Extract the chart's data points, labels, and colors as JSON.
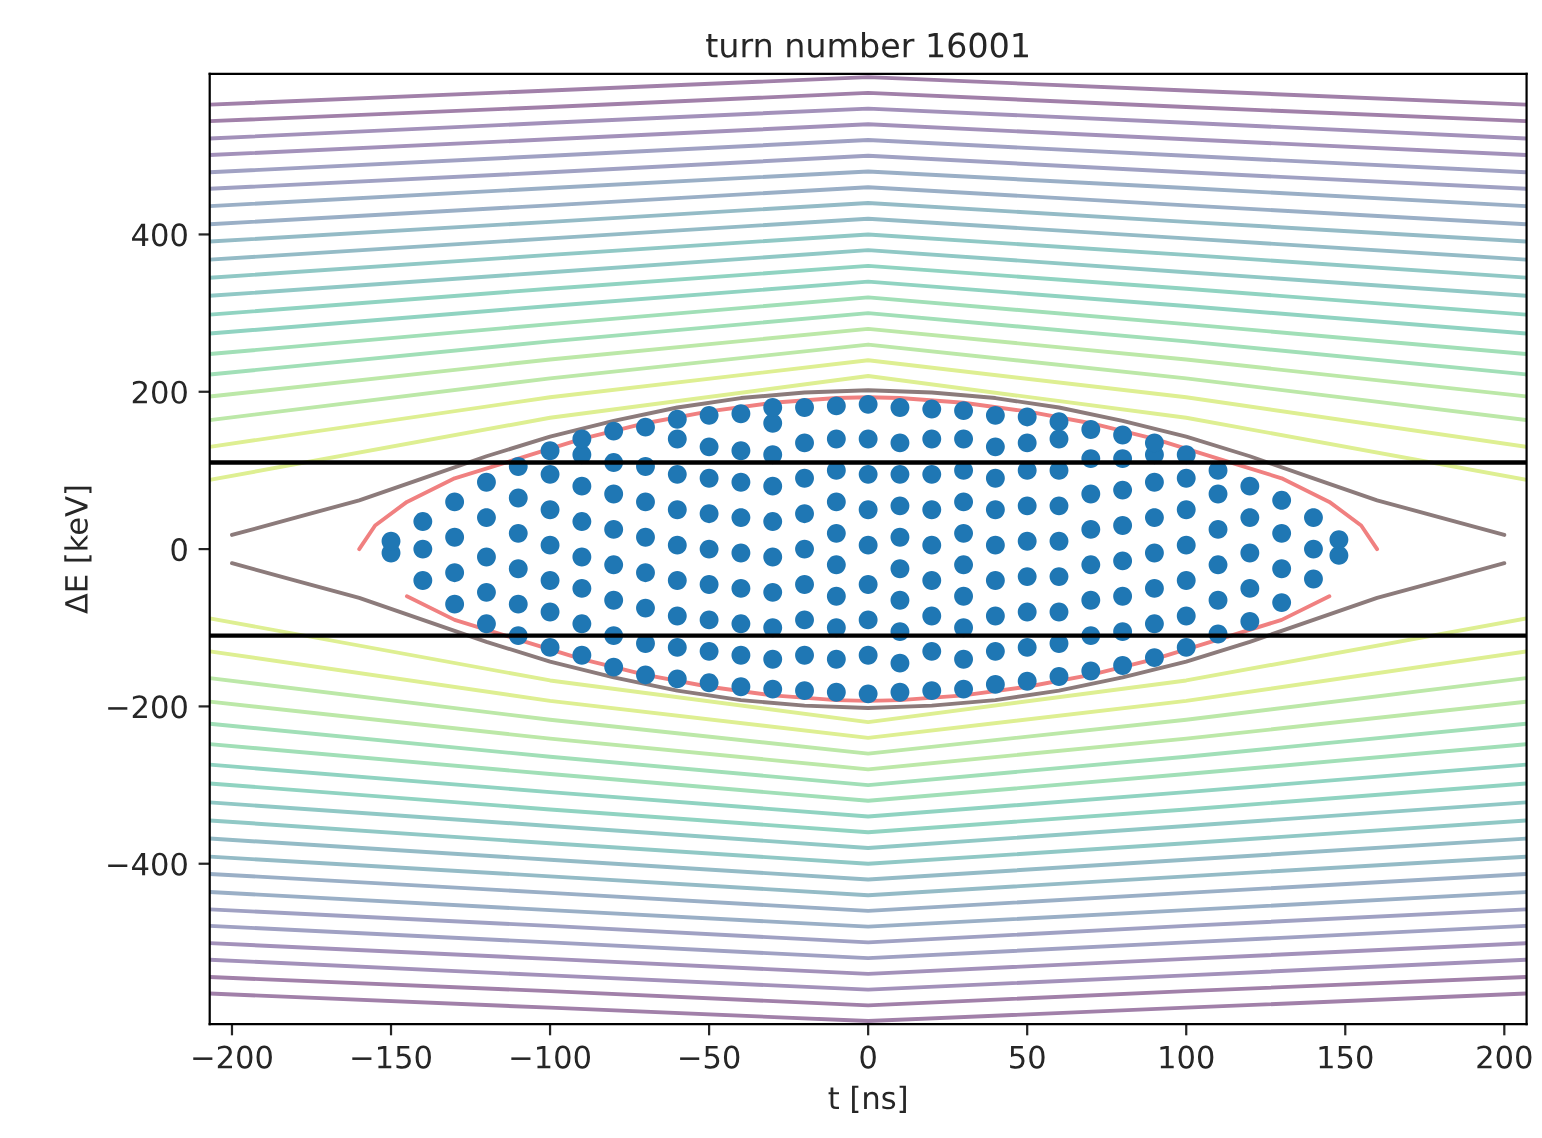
{
  "chart_data": {
    "type": "scatter",
    "title": "turn number 16001",
    "xlabel": "t [ns]",
    "ylabel": "ΔE [keV]",
    "xlim": [
      -207,
      207
    ],
    "ylim": [
      -604,
      604
    ],
    "xticks": [
      {
        "value": -200,
        "label": "−200"
      },
      {
        "value": -150,
        "label": "−150"
      },
      {
        "value": -100,
        "label": "−100"
      },
      {
        "value": -50,
        "label": "−50"
      },
      0,
      50,
      100,
      150,
      200
    ],
    "yticks": [
      {
        "value": -400,
        "label": "−400"
      },
      {
        "value": -200,
        "label": "−200"
      },
      0,
      200,
      400
    ],
    "x": [
      -207,
      -100,
      0,
      100,
      207
    ],
    "ref_lines": [
      {
        "axis": "y",
        "value": 110,
        "color": "#000000"
      },
      {
        "axis": "y",
        "value": -110,
        "color": "#000000"
      }
    ],
    "series": [
      {
        "type": "line",
        "color": "#deef92",
        "values": [
          88,
          167,
          220,
          167,
          88
        ]
      },
      {
        "type": "line",
        "color": "#deef92",
        "values": [
          130,
          193,
          240,
          193,
          130
        ]
      },
      {
        "type": "line",
        "color": "#bce8a8",
        "values": [
          164,
          217,
          260,
          217,
          164
        ]
      },
      {
        "type": "line",
        "color": "#bce8a8",
        "values": [
          194,
          241,
          280,
          241,
          194
        ]
      },
      {
        "type": "line",
        "color": "#a1dfb7",
        "values": [
          222,
          264,
          300,
          264,
          222
        ]
      },
      {
        "type": "line",
        "color": "#a1dfb7",
        "values": [
          248,
          286,
          320,
          286,
          248
        ]
      },
      {
        "type": "line",
        "color": "#90d3c1",
        "values": [
          274,
          309,
          340,
          309,
          274
        ]
      },
      {
        "type": "line",
        "color": "#90d3c1",
        "values": [
          298,
          331,
          360,
          331,
          298
        ]
      },
      {
        "type": "line",
        "color": "#90c8c5",
        "values": [
          322,
          352,
          380,
          352,
          322
        ]
      },
      {
        "type": "line",
        "color": "#90c8c5",
        "values": [
          345,
          374,
          400,
          374,
          345
        ]
      },
      {
        "type": "line",
        "color": "#94bbc6",
        "values": [
          368,
          395,
          420,
          395,
          368
        ]
      },
      {
        "type": "line",
        "color": "#94bbc6",
        "values": [
          391,
          416,
          440,
          416,
          391
        ]
      },
      {
        "type": "line",
        "color": "#9aafc6",
        "values": [
          413,
          437,
          460,
          437,
          413
        ]
      },
      {
        "type": "line",
        "color": "#9aafc6",
        "values": [
          436,
          459,
          480,
          459,
          436
        ]
      },
      {
        "type": "line",
        "color": "#a0a1c3",
        "values": [
          458,
          479,
          500,
          479,
          458
        ]
      },
      {
        "type": "line",
        "color": "#a0a1c3",
        "values": [
          479,
          500,
          520,
          500,
          479
        ]
      },
      {
        "type": "line",
        "color": "#a391ba",
        "values": [
          501,
          521,
          540,
          521,
          501
        ]
      },
      {
        "type": "line",
        "color": "#a391ba",
        "values": [
          522,
          542,
          560,
          542,
          522
        ]
      },
      {
        "type": "line",
        "color": "#a180a9",
        "values": [
          544,
          562,
          580,
          562,
          544
        ]
      },
      {
        "type": "line",
        "color": "#a180a9",
        "values": [
          565,
          583,
          600,
          583,
          565
        ]
      },
      {
        "type": "line",
        "color": "#deef92",
        "values": [
          -88,
          -167,
          -220,
          -167,
          -88
        ]
      },
      {
        "type": "line",
        "color": "#deef92",
        "values": [
          -130,
          -193,
          -240,
          -193,
          -130
        ]
      },
      {
        "type": "line",
        "color": "#bce8a8",
        "values": [
          -164,
          -217,
          -260,
          -217,
          -164
        ]
      },
      {
        "type": "line",
        "color": "#bce8a8",
        "values": [
          -194,
          -241,
          -280,
          -241,
          -194
        ]
      },
      {
        "type": "line",
        "color": "#a1dfb7",
        "values": [
          -222,
          -264,
          -300,
          -264,
          -222
        ]
      },
      {
        "type": "line",
        "color": "#a1dfb7",
        "values": [
          -248,
          -286,
          -320,
          -286,
          -248
        ]
      },
      {
        "type": "line",
        "color": "#90d3c1",
        "values": [
          -274,
          -309,
          -340,
          -309,
          -274
        ]
      },
      {
        "type": "line",
        "color": "#90d3c1",
        "values": [
          -298,
          -331,
          -360,
          -331,
          -298
        ]
      },
      {
        "type": "line",
        "color": "#90c8c5",
        "values": [
          -322,
          -352,
          -380,
          -352,
          -322
        ]
      },
      {
        "type": "line",
        "color": "#90c8c5",
        "values": [
          -345,
          -374,
          -400,
          -374,
          -345
        ]
      },
      {
        "type": "line",
        "color": "#94bbc6",
        "values": [
          -368,
          -395,
          -420,
          -395,
          -368
        ]
      },
      {
        "type": "line",
        "color": "#94bbc6",
        "values": [
          -391,
          -416,
          -440,
          -416,
          -391
        ]
      },
      {
        "type": "line",
        "color": "#9aafc6",
        "values": [
          -413,
          -437,
          -460,
          -437,
          -413
        ]
      },
      {
        "type": "line",
        "color": "#9aafc6",
        "values": [
          -436,
          -459,
          -480,
          -459,
          -436
        ]
      },
      {
        "type": "line",
        "color": "#a0a1c3",
        "values": [
          -458,
          -479,
          -500,
          -479,
          -458
        ]
      },
      {
        "type": "line",
        "color": "#a0a1c3",
        "values": [
          -479,
          -500,
          -520,
          -500,
          -479
        ]
      },
      {
        "type": "line",
        "color": "#a391ba",
        "values": [
          -501,
          -521,
          -540,
          -521,
          -501
        ]
      },
      {
        "type": "line",
        "color": "#a391ba",
        "values": [
          -522,
          -542,
          -560,
          -542,
          -522
        ]
      },
      {
        "type": "line",
        "color": "#a180a9",
        "values": [
          -544,
          -562,
          -580,
          -562,
          -544
        ]
      },
      {
        "type": "line",
        "color": "#a180a9",
        "values": [
          -565,
          -583,
          -600,
          -583,
          -565
        ]
      },
      {
        "type": "line",
        "color": "#8c7b7b",
        "x": [
          -200,
          -180,
          -160,
          -140,
          -120,
          -100,
          -80,
          -60,
          -40,
          -20,
          0,
          20,
          40,
          60,
          80,
          100,
          120,
          140,
          160,
          180,
          200
        ],
        "values": [
          18,
          40,
          62,
          90,
          118,
          143,
          163,
          180,
          192,
          199,
          202,
          199,
          192,
          180,
          163,
          143,
          118,
          90,
          62,
          40,
          18
        ]
      },
      {
        "type": "line",
        "color": "#8c7b7b",
        "x": [
          -200,
          -180,
          -160,
          -140,
          -120,
          -100,
          -80,
          -60,
          -40,
          -20,
          0,
          20,
          40,
          60,
          80,
          100,
          120,
          140,
          160,
          180,
          200
        ],
        "values": [
          -18,
          -40,
          -62,
          -90,
          -118,
          -143,
          -163,
          -180,
          -192,
          -199,
          -202,
          -199,
          -192,
          -180,
          -163,
          -143,
          -118,
          -90,
          -62,
          -40,
          -18
        ]
      },
      {
        "color": "#1f77b4",
        "marker": "circle",
        "x": [
          -150,
          -150,
          -140,
          -140,
          -140,
          -130,
          -130,
          -130,
          -130,
          -120,
          -120,
          -120,
          -120,
          -120,
          -110,
          -110,
          -110,
          -110,
          -110,
          -110,
          -100,
          -100,
          -100,
          -100,
          -100,
          -100,
          -100,
          -90,
          -90,
          -90,
          -90,
          -90,
          -90,
          -90,
          -90,
          -80,
          -80,
          -80,
          -80,
          -80,
          -80,
          -80,
          -80,
          -70,
          -70,
          -70,
          -70,
          -70,
          -70,
          -70,
          -70,
          -60,
          -60,
          -60,
          -60,
          -60,
          -60,
          -60,
          -60,
          -60,
          -50,
          -50,
          -50,
          -50,
          -50,
          -50,
          -50,
          -50,
          -50,
          -40,
          -40,
          -40,
          -40,
          -40,
          -40,
          -40,
          -40,
          -40,
          -30,
          -30,
          -30,
          -30,
          -30,
          -30,
          -30,
          -30,
          -30,
          -30,
          -20,
          -20,
          -20,
          -20,
          -20,
          -20,
          -20,
          -20,
          -20,
          -10,
          -10,
          -10,
          -10,
          -10,
          -10,
          -10,
          -10,
          -10,
          -10,
          0,
          0,
          0,
          0,
          0,
          0,
          0,
          0,
          0,
          10,
          10,
          10,
          10,
          10,
          10,
          10,
          10,
          10,
          10,
          20,
          20,
          20,
          20,
          20,
          20,
          20,
          20,
          20,
          30,
          30,
          30,
          30,
          30,
          30,
          30,
          30,
          30,
          30,
          40,
          40,
          40,
          40,
          40,
          40,
          40,
          40,
          40,
          50,
          50,
          50,
          50,
          50,
          50,
          50,
          50,
          50,
          60,
          60,
          60,
          60,
          60,
          60,
          60,
          60,
          60,
          70,
          70,
          70,
          70,
          70,
          70,
          70,
          70,
          80,
          80,
          80,
          80,
          80,
          80,
          80,
          80,
          90,
          90,
          90,
          90,
          90,
          90,
          90,
          90,
          100,
          100,
          100,
          100,
          100,
          100,
          100,
          110,
          110,
          110,
          110,
          110,
          110,
          120,
          120,
          120,
          120,
          120,
          130,
          130,
          130,
          130,
          140,
          140,
          140,
          148,
          148
        ],
        "values": [
          -5,
          10,
          -40,
          0,
          35,
          -70,
          -30,
          15,
          60,
          -95,
          -55,
          -10,
          40,
          85,
          -110,
          -70,
          -25,
          20,
          65,
          105,
          -125,
          -80,
          -40,
          5,
          50,
          95,
          125,
          -135,
          -95,
          -50,
          -10,
          35,
          80,
          120,
          140,
          -150,
          -110,
          -65,
          -20,
          25,
          70,
          110,
          150,
          -160,
          -120,
          -75,
          -30,
          15,
          60,
          105,
          155,
          -165,
          -125,
          -85,
          -40,
          5,
          50,
          95,
          140,
          165,
          -170,
          -130,
          -90,
          -45,
          0,
          45,
          90,
          130,
          170,
          -175,
          -135,
          -95,
          -50,
          -5,
          40,
          85,
          125,
          172,
          -178,
          -140,
          -100,
          -55,
          -10,
          35,
          80,
          120,
          160,
          180,
          -180,
          -135,
          -90,
          -45,
          0,
          45,
          90,
          135,
          180,
          -182,
          -140,
          -100,
          -60,
          -20,
          20,
          60,
          100,
          140,
          182,
          -184,
          -135,
          -90,
          -45,
          5,
          50,
          95,
          140,
          184,
          -182,
          -145,
          -105,
          -65,
          -25,
          15,
          55,
          95,
          135,
          180,
          -180,
          -130,
          -85,
          -40,
          5,
          50,
          95,
          140,
          178,
          -178,
          -140,
          -100,
          -60,
          -20,
          20,
          60,
          100,
          140,
          176,
          -172,
          -130,
          -85,
          -40,
          5,
          50,
          90,
          130,
          170,
          -168,
          -125,
          -80,
          -35,
          10,
          55,
          100,
          135,
          168,
          -162,
          -120,
          -80,
          -35,
          10,
          55,
          100,
          140,
          162,
          -155,
          -110,
          -65,
          -20,
          25,
          70,
          115,
          152,
          -148,
          -105,
          -60,
          -15,
          30,
          75,
          115,
          145,
          -138,
          -95,
          -50,
          -5,
          40,
          85,
          120,
          135,
          -125,
          -85,
          -40,
          5,
          50,
          90,
          120,
          -108,
          -65,
          -20,
          25,
          70,
          100,
          -92,
          -50,
          -5,
          40,
          80,
          -68,
          -25,
          20,
          62,
          -38,
          0,
          40,
          -8,
          12
        ]
      },
      {
        "type": "line",
        "color": "#f08080",
        "x": [
          -160,
          -155,
          -145,
          -130,
          -110,
          -90,
          -70,
          -50,
          -30,
          -10,
          0,
          10,
          30,
          50,
          70,
          90,
          110,
          130,
          145,
          155,
          160
        ],
        "values": [
          0,
          30,
          60,
          90,
          115,
          140,
          160,
          175,
          186,
          192,
          193,
          192,
          186,
          175,
          160,
          140,
          115,
          90,
          60,
          30,
          0
        ]
      },
      {
        "type": "line",
        "color": "#f08080",
        "x": [
          -145,
          -130,
          -110,
          -90,
          -70,
          -50,
          -30,
          -10,
          0,
          10,
          30,
          50,
          70,
          90,
          110,
          130,
          145
        ],
        "values": [
          -60,
          -90,
          -115,
          -140,
          -160,
          -175,
          -186,
          -192,
          -193,
          -192,
          -186,
          -175,
          -160,
          -140,
          -115,
          -90,
          -60
        ]
      }
    ]
  }
}
